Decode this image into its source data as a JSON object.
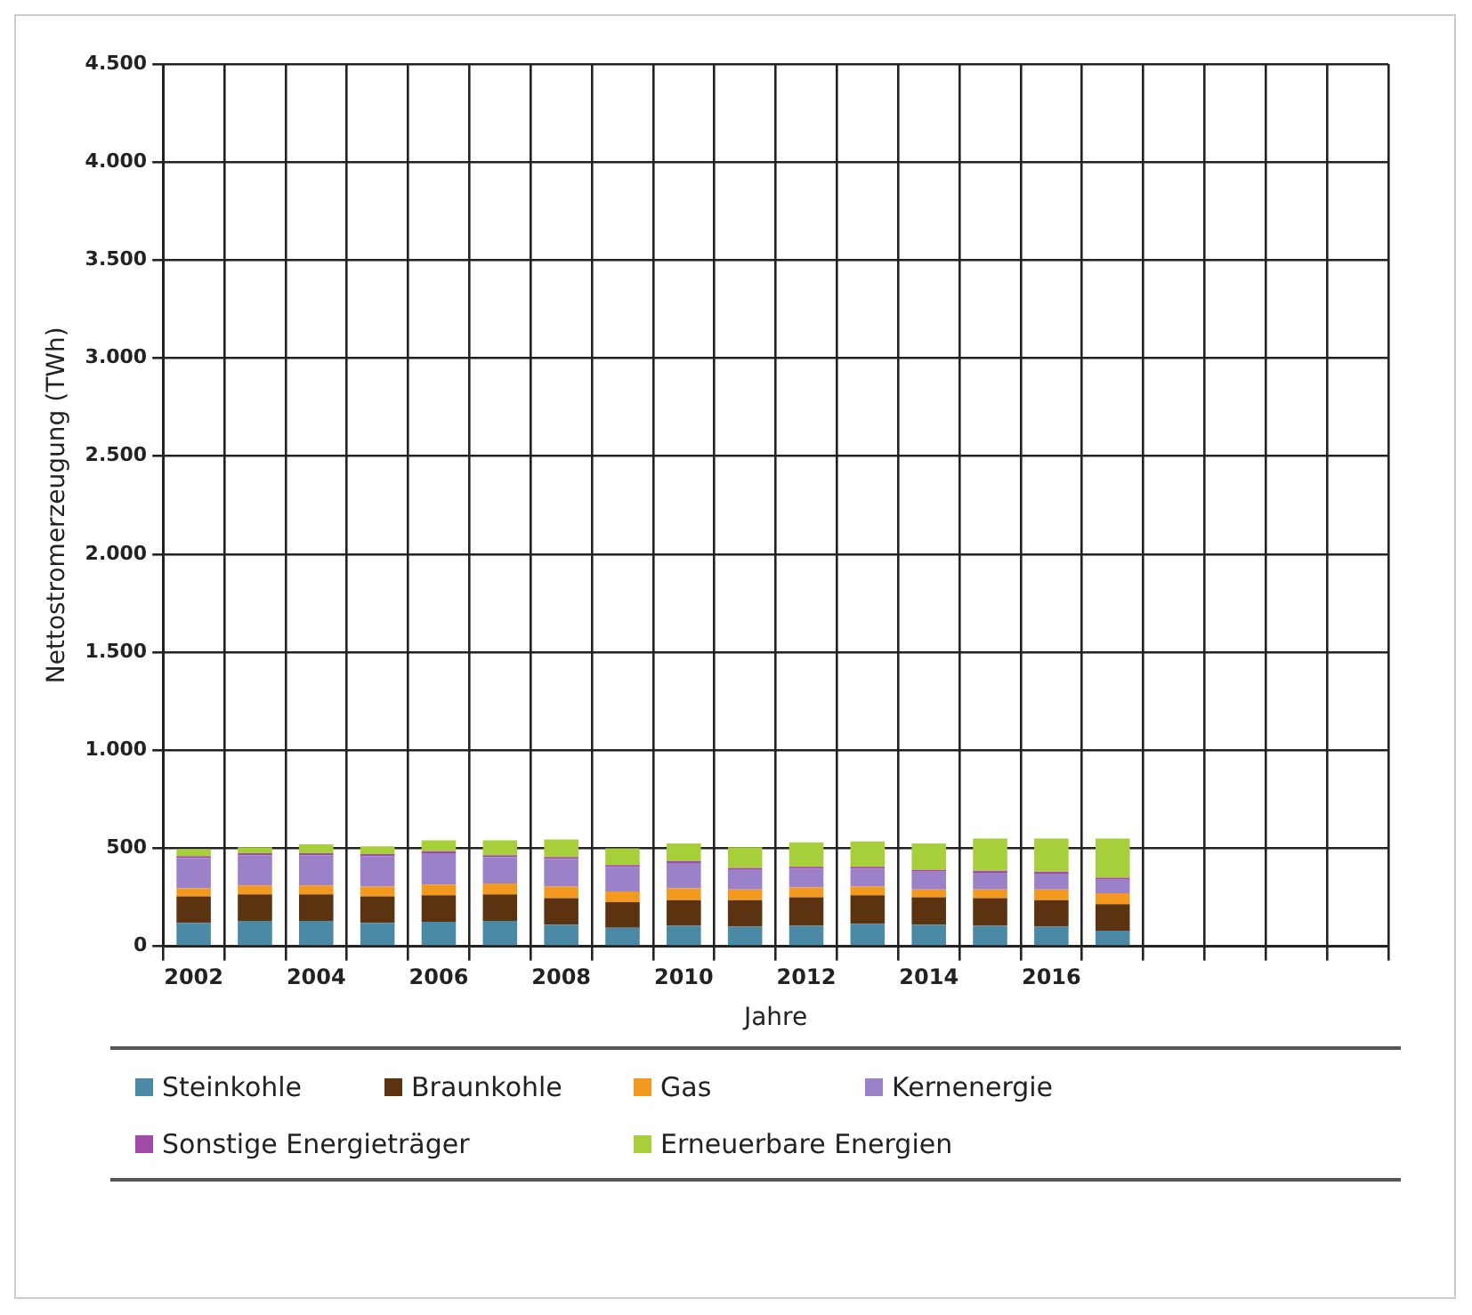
{
  "chart_data": {
    "type": "bar",
    "stacked": true,
    "xlabel": "Jahre",
    "ylabel": "Nettostromerzeugung (TWh)",
    "categories": [
      "2002",
      null,
      "2004",
      null,
      "2006",
      null,
      "2008",
      null,
      "2010",
      null,
      "2012",
      null,
      "2014",
      null,
      "2016",
      null,
      null,
      null,
      null,
      null
    ],
    "series": [
      {
        "name": "Steinkohle",
        "color": "#4a8aa6",
        "values": [
          120,
          130,
          130,
          120,
          125,
          130,
          110,
          95,
          105,
          100,
          105,
          115,
          110,
          105,
          100,
          80,
          null,
          null,
          null,
          null
        ]
      },
      {
        "name": "Braunkohle",
        "color": "#5c3310",
        "values": [
          135,
          135,
          135,
          135,
          135,
          135,
          135,
          130,
          130,
          135,
          145,
          145,
          140,
          140,
          135,
          135,
          null,
          null,
          null,
          null
        ]
      },
      {
        "name": "Gas",
        "color": "#f39a1e",
        "values": [
          40,
          45,
          45,
          50,
          55,
          55,
          60,
          55,
          60,
          55,
          50,
          45,
          40,
          45,
          55,
          55,
          null,
          null,
          null,
          null
        ]
      },
      {
        "name": "Kernenergie",
        "color": "#9b82c8",
        "values": [
          155,
          155,
          155,
          155,
          160,
          135,
          140,
          125,
          130,
          100,
          95,
          90,
          90,
          85,
          80,
          70,
          null,
          null,
          null,
          null
        ]
      },
      {
        "name": "Sonstige Energieträger",
        "color": "#a24aa8",
        "values": [
          10,
          10,
          10,
          10,
          10,
          10,
          10,
          10,
          10,
          10,
          10,
          10,
          10,
          10,
          10,
          10,
          null,
          null,
          null,
          null
        ]
      },
      {
        "name": "Erneuerbare Energien",
        "color": "#a6cf3a",
        "values": [
          35,
          30,
          45,
          40,
          55,
          75,
          90,
          85,
          90,
          105,
          125,
          130,
          135,
          165,
          170,
          200,
          null,
          null,
          null,
          null
        ]
      }
    ],
    "ylim": [
      0,
      4500
    ],
    "yticks": [
      0,
      {
        "value": 500,
        "label": "500"
      },
      {
        "value": 1000,
        "label": "1.000"
      },
      {
        "value": 1500,
        "label": "1.500"
      },
      {
        "value": 2000,
        "label": "2.000"
      },
      {
        "value": 2500,
        "label": "2.500"
      },
      {
        "value": 3000,
        "label": "3.000"
      },
      {
        "value": 3500,
        "label": "3.500"
      },
      {
        "value": 4000,
        "label": "4.000"
      },
      {
        "value": 4500,
        "label": "4.500"
      }
    ],
    "grid": true,
    "legend": "bottom"
  }
}
